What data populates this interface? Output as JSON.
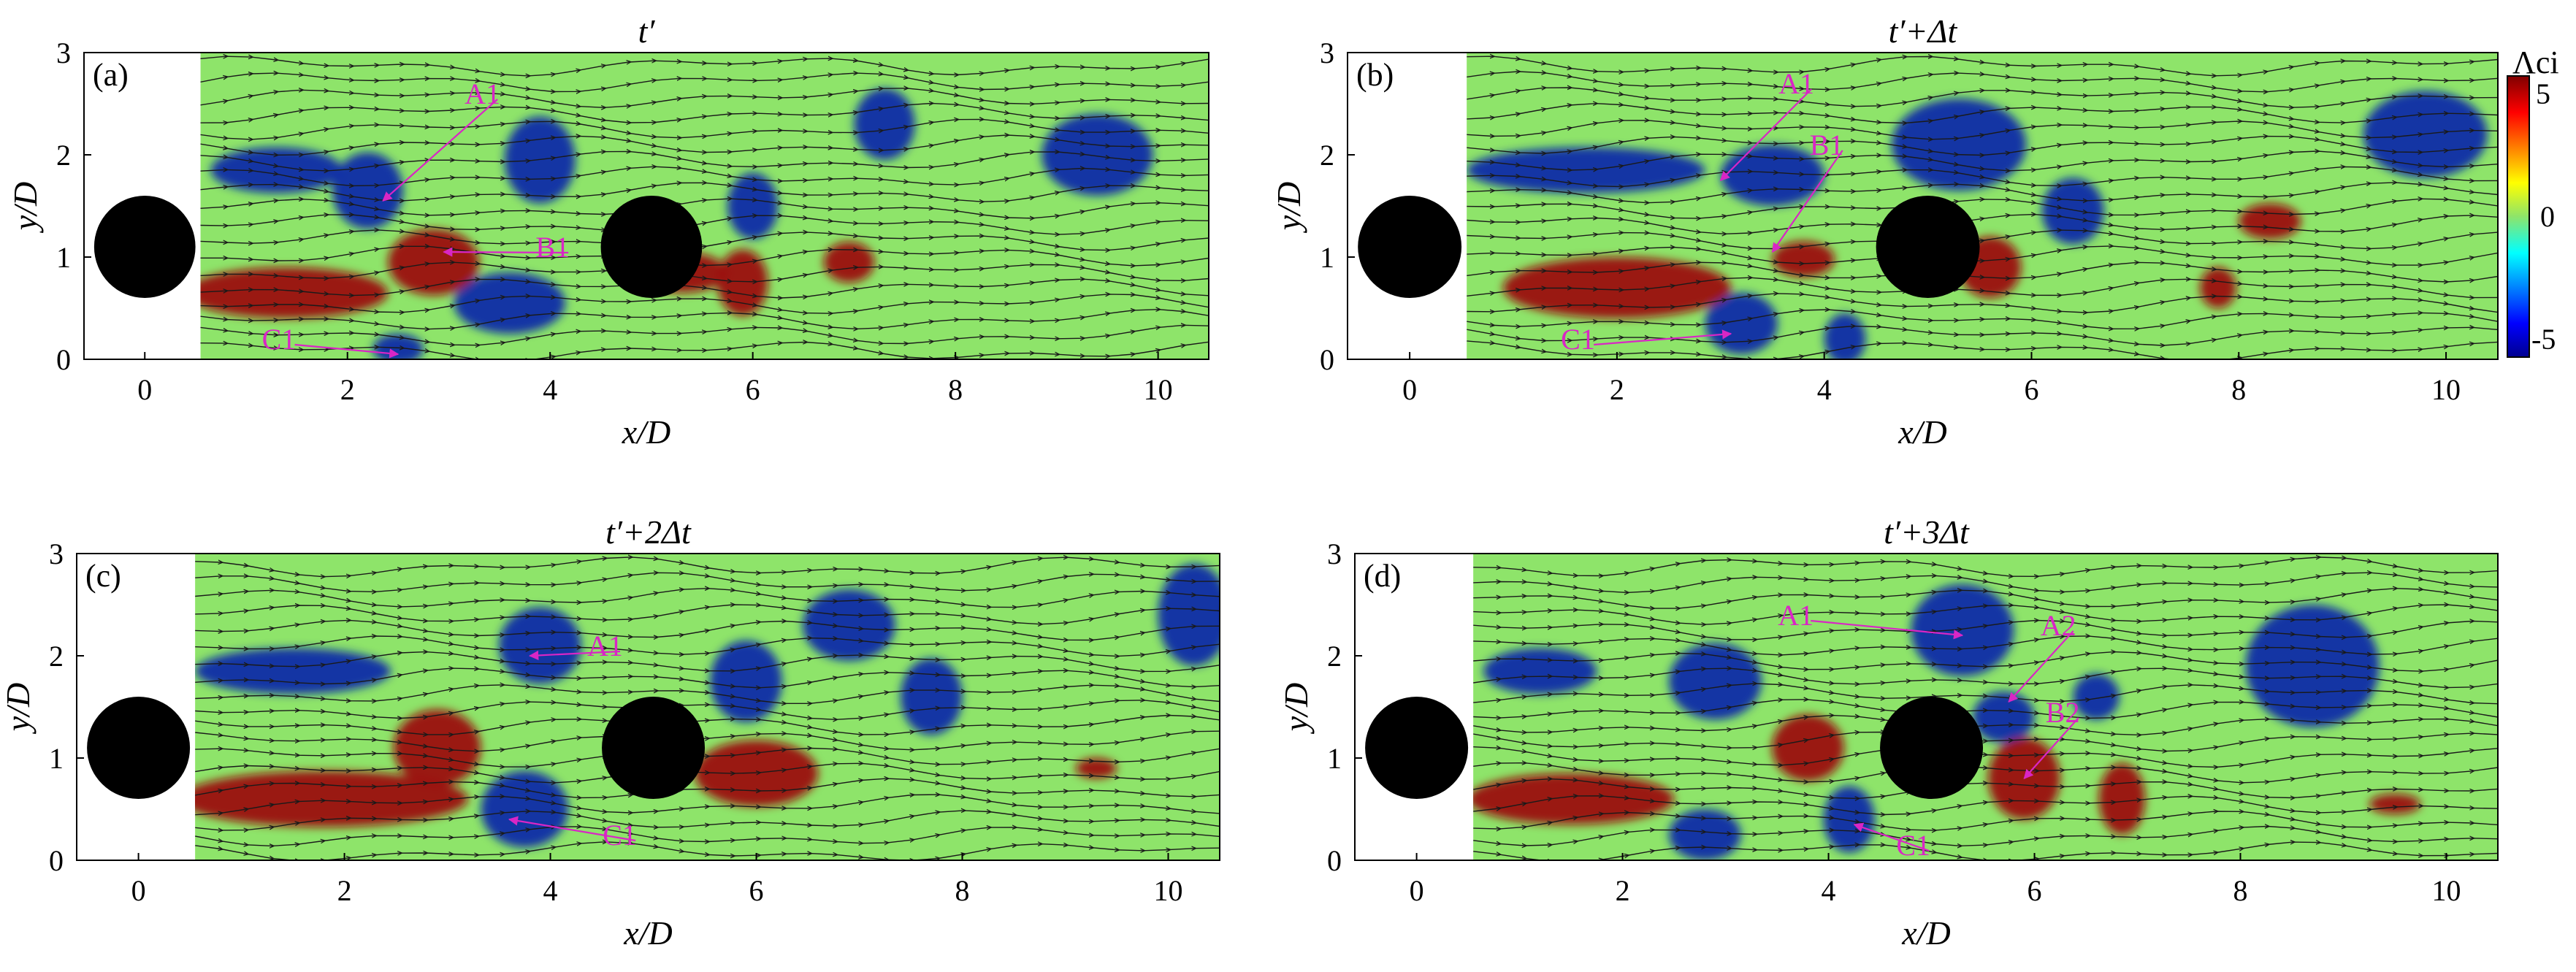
{
  "figure": {
    "x_axis_label": "x/D",
    "y_axis_label": "y/D",
    "x_ticks": [
      "0",
      "2",
      "4",
      "6",
      "8",
      "10"
    ],
    "y_ticks": [
      "0",
      "1",
      "2",
      "3"
    ],
    "colorbar": {
      "title": "Λci",
      "ticks": [
        "5",
        "0",
        "-5"
      ],
      "range": [
        -5,
        5
      ],
      "colormap": "jet"
    },
    "colors": {
      "background_field": "#8ee46a",
      "positive_vortex": "#9b0a0a",
      "negative_vortex": "#0a2ca8",
      "label_magenta": "#d926c5",
      "cylinder": "#000000",
      "streamline": "#1a1a1a"
    },
    "panels": [
      {
        "letter": "(a)",
        "time": "t′",
        "cylinders": [
          {
            "x": 0,
            "y": 1.1
          },
          {
            "x": 5,
            "y": 1.1
          }
        ],
        "vortices": [
          {
            "sign": "neg",
            "x": 1.3,
            "y": 1.85,
            "w": 1.3,
            "h": 0.45
          },
          {
            "sign": "neg",
            "x": 2.2,
            "y": 1.65,
            "w": 0.7,
            "h": 0.75
          },
          {
            "sign": "neg",
            "x": 3.9,
            "y": 1.95,
            "w": 0.7,
            "h": 0.85
          },
          {
            "sign": "neg",
            "x": 3.6,
            "y": 0.55,
            "w": 1.1,
            "h": 0.6
          },
          {
            "sign": "neg",
            "x": 6.0,
            "y": 1.5,
            "w": 0.5,
            "h": 0.65
          },
          {
            "sign": "neg",
            "x": 9.4,
            "y": 2.0,
            "w": 1.1,
            "h": 0.8
          },
          {
            "sign": "neg",
            "x": 7.3,
            "y": 2.3,
            "w": 0.6,
            "h": 0.7
          },
          {
            "sign": "neg",
            "x": 2.5,
            "y": 0.1,
            "w": 0.5,
            "h": 0.3
          },
          {
            "sign": "pos",
            "x": 1.4,
            "y": 0.65,
            "w": 2.0,
            "h": 0.5
          },
          {
            "sign": "pos",
            "x": 2.85,
            "y": 0.95,
            "w": 0.9,
            "h": 0.65
          },
          {
            "sign": "pos",
            "x": 5.9,
            "y": 0.75,
            "w": 0.5,
            "h": 0.65
          },
          {
            "sign": "pos",
            "x": 6.95,
            "y": 0.95,
            "w": 0.5,
            "h": 0.4
          },
          {
            "sign": "pos",
            "x": 5.3,
            "y": 0.85,
            "w": 0.9,
            "h": 0.4
          }
        ],
        "annotations": [
          {
            "text": "A1",
            "x": 3.3,
            "y": 2.6,
            "tx": 2.35,
            "ty": 1.55
          },
          {
            "text": "B1",
            "x": 4.0,
            "y": 1.1,
            "tx": 2.95,
            "ty": 1.05
          },
          {
            "text": "C1",
            "x": 1.3,
            "y": 0.2,
            "tx": 2.5,
            "ty": 0.05
          }
        ]
      },
      {
        "letter": "(b)",
        "time": "t′+Δt",
        "cylinders": [
          {
            "x": 0,
            "y": 1.1
          },
          {
            "x": 5,
            "y": 1.1
          }
        ],
        "vortices": [
          {
            "sign": "neg",
            "x": 1.7,
            "y": 1.85,
            "w": 2.3,
            "h": 0.45
          },
          {
            "sign": "neg",
            "x": 3.5,
            "y": 1.8,
            "w": 1.0,
            "h": 0.6
          },
          {
            "sign": "neg",
            "x": 5.3,
            "y": 2.1,
            "w": 1.3,
            "h": 0.9
          },
          {
            "sign": "neg",
            "x": 6.4,
            "y": 1.45,
            "w": 0.6,
            "h": 0.65
          },
          {
            "sign": "neg",
            "x": 9.8,
            "y": 2.2,
            "w": 1.2,
            "h": 0.85
          },
          {
            "sign": "neg",
            "x": 3.2,
            "y": 0.35,
            "w": 0.7,
            "h": 0.6
          },
          {
            "sign": "neg",
            "x": 4.2,
            "y": 0.2,
            "w": 0.4,
            "h": 0.5
          },
          {
            "sign": "pos",
            "x": 2.0,
            "y": 0.7,
            "w": 2.2,
            "h": 0.6
          },
          {
            "sign": "pos",
            "x": 3.8,
            "y": 0.98,
            "w": 0.6,
            "h": 0.35
          },
          {
            "sign": "pos",
            "x": 5.6,
            "y": 0.9,
            "w": 0.6,
            "h": 0.6
          },
          {
            "sign": "pos",
            "x": 7.8,
            "y": 0.7,
            "w": 0.35,
            "h": 0.4
          },
          {
            "sign": "pos",
            "x": 8.3,
            "y": 1.35,
            "w": 0.6,
            "h": 0.35
          }
        ],
        "annotations": [
          {
            "text": "A1",
            "x": 3.7,
            "y": 2.7,
            "tx": 3.0,
            "ty": 1.75
          },
          {
            "text": "B1",
            "x": 4.0,
            "y": 2.1,
            "tx": 3.5,
            "ty": 1.05
          },
          {
            "text": "C1",
            "x": 1.6,
            "y": 0.2,
            "tx": 3.1,
            "ty": 0.25
          }
        ]
      },
      {
        "letter": "(c)",
        "time": "t′+2Δt",
        "cylinders": [
          {
            "x": 0,
            "y": 1.1
          },
          {
            "x": 5,
            "y": 1.1
          }
        ],
        "vortices": [
          {
            "sign": "neg",
            "x": 1.5,
            "y": 1.85,
            "w": 1.9,
            "h": 0.45
          },
          {
            "sign": "neg",
            "x": 3.9,
            "y": 2.1,
            "w": 0.8,
            "h": 0.75
          },
          {
            "sign": "neg",
            "x": 3.75,
            "y": 0.5,
            "w": 0.85,
            "h": 0.75
          },
          {
            "sign": "neg",
            "x": 5.9,
            "y": 1.75,
            "w": 0.7,
            "h": 0.8
          },
          {
            "sign": "neg",
            "x": 6.9,
            "y": 2.3,
            "w": 0.9,
            "h": 0.7
          },
          {
            "sign": "neg",
            "x": 7.7,
            "y": 1.6,
            "w": 0.6,
            "h": 0.75
          },
          {
            "sign": "neg",
            "x": 10.25,
            "y": 2.4,
            "w": 0.7,
            "h": 1.0
          },
          {
            "sign": "pos",
            "x": 1.8,
            "y": 0.6,
            "w": 2.8,
            "h": 0.55
          },
          {
            "sign": "pos",
            "x": 2.9,
            "y": 1.1,
            "w": 0.85,
            "h": 0.75
          },
          {
            "sign": "pos",
            "x": 6.0,
            "y": 0.85,
            "w": 1.2,
            "h": 0.65
          },
          {
            "sign": "pos",
            "x": 9.3,
            "y": 0.9,
            "w": 0.4,
            "h": 0.2
          }
        ],
        "annotations": [
          {
            "text": "A1",
            "x": 4.5,
            "y": 2.1,
            "tx": 3.8,
            "ty": 2.0
          },
          {
            "text": "C1",
            "x": 4.65,
            "y": 0.25,
            "tx": 3.6,
            "ty": 0.4
          }
        ]
      },
      {
        "letter": "(d)",
        "time": "t′+3Δt",
        "cylinders": [
          {
            "x": 0,
            "y": 1.1
          },
          {
            "x": 5,
            "y": 1.1
          }
        ],
        "vortices": [
          {
            "sign": "neg",
            "x": 1.2,
            "y": 1.85,
            "w": 1.1,
            "h": 0.45
          },
          {
            "sign": "neg",
            "x": 2.9,
            "y": 1.75,
            "w": 0.9,
            "h": 0.75
          },
          {
            "sign": "neg",
            "x": 5.3,
            "y": 2.25,
            "w": 1.0,
            "h": 0.9
          },
          {
            "sign": "neg",
            "x": 5.7,
            "y": 1.4,
            "w": 0.6,
            "h": 0.5
          },
          {
            "sign": "neg",
            "x": 8.7,
            "y": 1.9,
            "w": 1.3,
            "h": 1.2
          },
          {
            "sign": "neg",
            "x": 2.8,
            "y": 0.25,
            "w": 0.7,
            "h": 0.5
          },
          {
            "sign": "neg",
            "x": 4.2,
            "y": 0.4,
            "w": 0.5,
            "h": 0.65
          },
          {
            "sign": "neg",
            "x": 6.6,
            "y": 1.6,
            "w": 0.45,
            "h": 0.45
          },
          {
            "sign": "pos",
            "x": 1.5,
            "y": 0.6,
            "w": 2.0,
            "h": 0.5
          },
          {
            "sign": "pos",
            "x": 3.8,
            "y": 1.1,
            "w": 0.7,
            "h": 0.65
          },
          {
            "sign": "pos",
            "x": 5.9,
            "y": 0.8,
            "w": 0.7,
            "h": 0.8
          },
          {
            "sign": "pos",
            "x": 6.85,
            "y": 0.6,
            "w": 0.45,
            "h": 0.7
          },
          {
            "sign": "pos",
            "x": 9.5,
            "y": 0.55,
            "w": 0.5,
            "h": 0.2
          }
        ],
        "annotations": [
          {
            "text": "A1",
            "x": 3.65,
            "y": 2.4,
            "tx": 5.3,
            "ty": 2.2
          },
          {
            "text": "A2",
            "x": 6.2,
            "y": 2.3,
            "tx": 5.75,
            "ty": 1.55
          },
          {
            "text": "B2",
            "x": 6.25,
            "y": 1.45,
            "tx": 5.9,
            "ty": 0.8
          },
          {
            "text": "C1",
            "x": 4.8,
            "y": 0.15,
            "tx": 4.25,
            "ty": 0.35
          }
        ]
      }
    ]
  }
}
